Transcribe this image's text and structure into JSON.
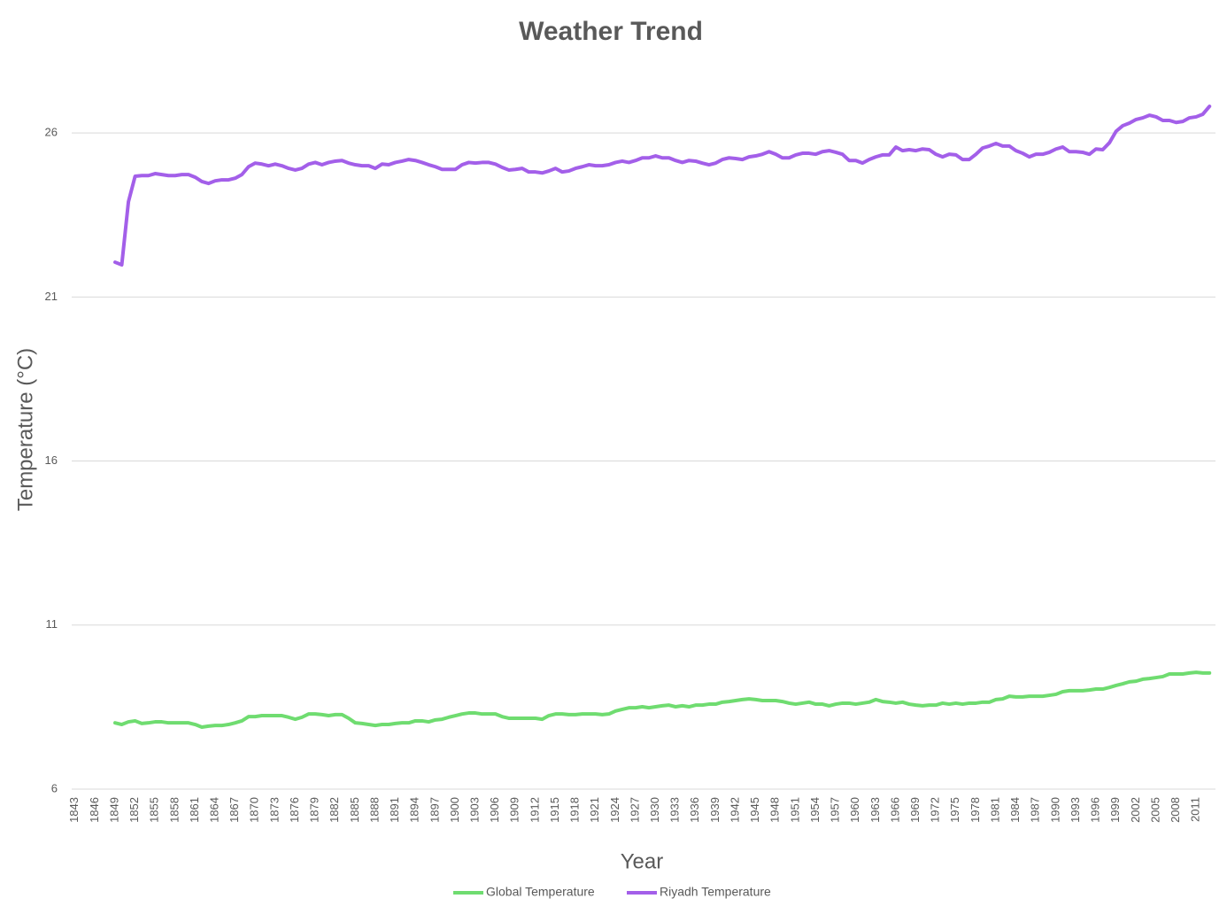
{
  "chart_data": {
    "type": "line",
    "title": "Weather Trend",
    "x_label": "Year",
    "y_label": "Temperature (°C)",
    "x": [
      1849,
      1850,
      1851,
      1852,
      1853,
      1854,
      1855,
      1856,
      1857,
      1858,
      1859,
      1860,
      1861,
      1862,
      1863,
      1864,
      1865,
      1866,
      1867,
      1868,
      1869,
      1870,
      1871,
      1872,
      1873,
      1874,
      1875,
      1876,
      1877,
      1878,
      1879,
      1880,
      1881,
      1882,
      1883,
      1884,
      1885,
      1886,
      1887,
      1888,
      1889,
      1890,
      1891,
      1892,
      1893,
      1894,
      1895,
      1896,
      1897,
      1898,
      1899,
      1900,
      1901,
      1902,
      1903,
      1904,
      1905,
      1906,
      1907,
      1908,
      1909,
      1910,
      1911,
      1912,
      1913,
      1914,
      1915,
      1916,
      1917,
      1918,
      1919,
      1920,
      1921,
      1922,
      1923,
      1924,
      1925,
      1926,
      1927,
      1928,
      1929,
      1930,
      1931,
      1932,
      1933,
      1934,
      1935,
      1936,
      1937,
      1938,
      1939,
      1940,
      1941,
      1942,
      1943,
      1944,
      1945,
      1946,
      1947,
      1948,
      1949,
      1950,
      1951,
      1952,
      1953,
      1954,
      1955,
      1956,
      1957,
      1958,
      1959,
      1960,
      1961,
      1962,
      1963,
      1964,
      1965,
      1966,
      1967,
      1968,
      1969,
      1970,
      1971,
      1972,
      1973,
      1974,
      1975,
      1976,
      1977,
      1978,
      1979,
      1980,
      1981,
      1982,
      1983,
      1984,
      1985,
      1986,
      1987,
      1988,
      1989,
      1990,
      1991,
      1992,
      1993,
      1994,
      1995,
      1996,
      1997,
      1998,
      1999,
      2000,
      2001,
      2002,
      2003,
      2004,
      2005,
      2006,
      2007,
      2008,
      2009,
      2010,
      2011,
      2012,
      2013
    ],
    "xlim": [
      1842.5,
      2013.5
    ],
    "xticks": [
      1843,
      1846,
      1849,
      1852,
      1855,
      1858,
      1861,
      1864,
      1867,
      1870,
      1873,
      1876,
      1879,
      1882,
      1885,
      1888,
      1891,
      1894,
      1897,
      1900,
      1903,
      1906,
      1909,
      1912,
      1915,
      1918,
      1921,
      1924,
      1927,
      1930,
      1933,
      1936,
      1939,
      1942,
      1945,
      1948,
      1951,
      1954,
      1957,
      1960,
      1963,
      1966,
      1969,
      1972,
      1975,
      1978,
      1981,
      1984,
      1987,
      1990,
      1993,
      1996,
      1999,
      2002,
      2005,
      2008,
      2011
    ],
    "ylim": [
      6,
      28
    ],
    "yticks": [
      6,
      11,
      16,
      21,
      26
    ],
    "grid": true,
    "legend": "bottom",
    "series": [
      {
        "name": "Global Temperature",
        "color": "#6fdc70",
        "values": [
          8.02,
          7.97,
          8.05,
          8.08,
          8.0,
          8.02,
          8.05,
          8.05,
          8.02,
          8.02,
          8.02,
          8.02,
          7.97,
          7.89,
          7.92,
          7.94,
          7.94,
          7.97,
          8.02,
          8.08,
          8.21,
          8.21,
          8.24,
          8.24,
          8.24,
          8.24,
          8.19,
          8.13,
          8.19,
          8.29,
          8.29,
          8.27,
          8.24,
          8.27,
          8.27,
          8.16,
          8.02,
          8.0,
          7.97,
          7.94,
          7.97,
          7.97,
          8.0,
          8.02,
          8.02,
          8.08,
          8.08,
          8.05,
          8.11,
          8.13,
          8.19,
          8.24,
          8.29,
          8.32,
          8.32,
          8.29,
          8.29,
          8.29,
          8.21,
          8.16,
          8.16,
          8.16,
          8.16,
          8.16,
          8.13,
          8.24,
          8.29,
          8.29,
          8.27,
          8.27,
          8.29,
          8.29,
          8.29,
          8.27,
          8.29,
          8.38,
          8.43,
          8.48,
          8.48,
          8.51,
          8.48,
          8.51,
          8.54,
          8.56,
          8.51,
          8.54,
          8.51,
          8.56,
          8.56,
          8.59,
          8.59,
          8.65,
          8.67,
          8.7,
          8.73,
          8.75,
          8.73,
          8.7,
          8.7,
          8.7,
          8.67,
          8.62,
          8.59,
          8.62,
          8.65,
          8.59,
          8.59,
          8.54,
          8.59,
          8.62,
          8.62,
          8.59,
          8.62,
          8.65,
          8.73,
          8.67,
          8.65,
          8.62,
          8.65,
          8.59,
          8.56,
          8.54,
          8.56,
          8.56,
          8.62,
          8.59,
          8.62,
          8.59,
          8.62,
          8.62,
          8.65,
          8.65,
          8.73,
          8.75,
          8.83,
          8.81,
          8.81,
          8.83,
          8.83,
          8.83,
          8.86,
          8.89,
          8.97,
          9.0,
          9.0,
          9.0,
          9.02,
          9.05,
          9.05,
          9.1,
          9.16,
          9.21,
          9.27,
          9.29,
          9.35,
          9.37,
          9.4,
          9.43,
          9.51,
          9.51,
          9.51,
          9.54,
          9.56,
          9.54,
          9.54
        ]
      },
      {
        "name": "Riyadh Temperature",
        "color": "#a35fe9",
        "values": [
          22.06,
          21.98,
          23.9,
          24.68,
          24.7,
          24.7,
          24.76,
          24.73,
          24.7,
          24.7,
          24.73,
          24.73,
          24.65,
          24.52,
          24.46,
          24.54,
          24.57,
          24.57,
          24.62,
          24.73,
          24.97,
          25.08,
          25.05,
          25.0,
          25.05,
          25.0,
          24.92,
          24.87,
          24.92,
          25.05,
          25.1,
          25.03,
          25.1,
          25.14,
          25.16,
          25.08,
          25.03,
          25.0,
          25.0,
          24.92,
          25.05,
          25.03,
          25.1,
          25.14,
          25.19,
          25.16,
          25.1,
          25.03,
          24.97,
          24.89,
          24.89,
          24.89,
          25.03,
          25.1,
          25.08,
          25.1,
          25.1,
          25.05,
          24.95,
          24.87,
          24.89,
          24.92,
          24.81,
          24.81,
          24.78,
          24.84,
          24.92,
          24.81,
          24.84,
          24.92,
          24.97,
          25.03,
          25.0,
          25.0,
          25.03,
          25.1,
          25.14,
          25.1,
          25.16,
          25.24,
          25.24,
          25.3,
          25.24,
          25.24,
          25.16,
          25.1,
          25.16,
          25.14,
          25.08,
          25.03,
          25.08,
          25.19,
          25.24,
          25.22,
          25.19,
          25.27,
          25.3,
          25.35,
          25.43,
          25.35,
          25.24,
          25.24,
          25.33,
          25.38,
          25.38,
          25.35,
          25.43,
          25.46,
          25.41,
          25.35,
          25.16,
          25.16,
          25.08,
          25.19,
          25.27,
          25.33,
          25.33,
          25.57,
          25.46,
          25.49,
          25.46,
          25.51,
          25.49,
          25.35,
          25.27,
          25.35,
          25.33,
          25.19,
          25.19,
          25.35,
          25.54,
          25.6,
          25.68,
          25.6,
          25.6,
          25.46,
          25.38,
          25.27,
          25.35,
          25.35,
          25.41,
          25.51,
          25.57,
          25.43,
          25.43,
          25.41,
          25.35,
          25.51,
          25.49,
          25.7,
          26.05,
          26.22,
          26.3,
          26.41,
          26.46,
          26.54,
          26.49,
          26.38,
          26.38,
          26.32,
          26.35,
          26.46,
          26.49,
          26.57,
          26.81
        ]
      }
    ]
  }
}
